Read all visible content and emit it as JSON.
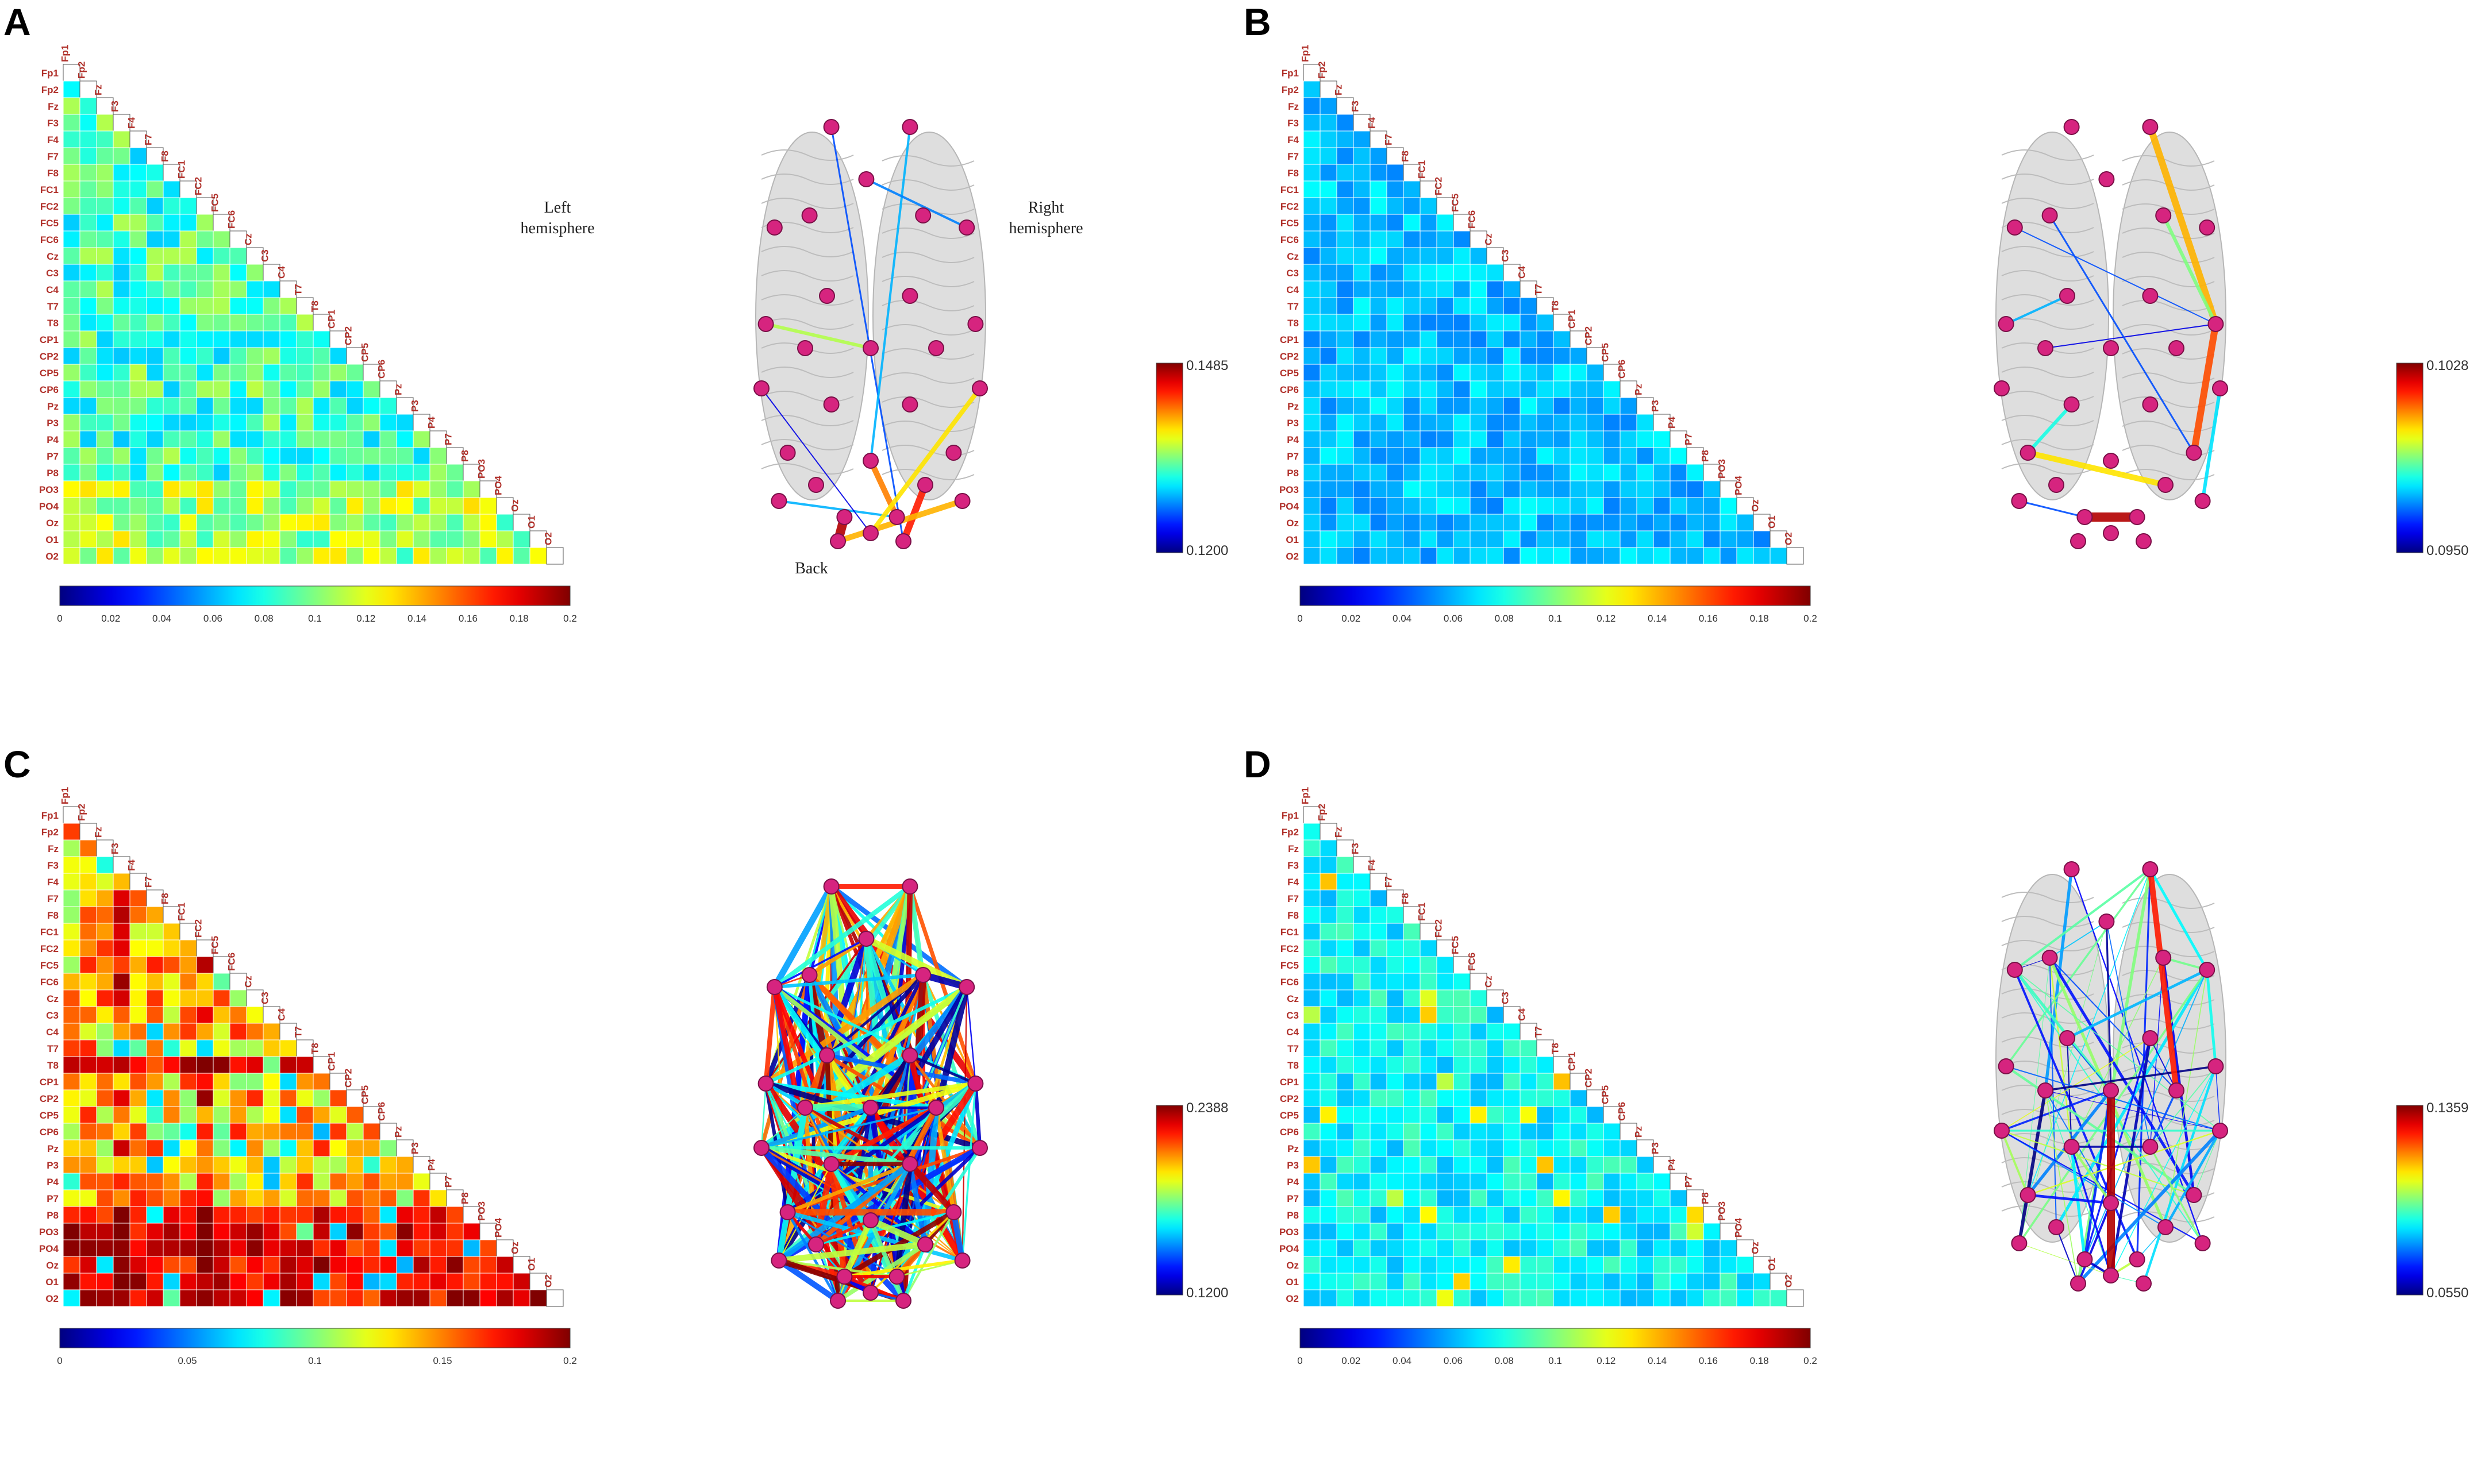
{
  "panels": [
    {
      "id": "A",
      "label": "A",
      "matrix_seed": 3,
      "matrix_mode": "A",
      "scale_labels": [
        "0",
        "0.02",
        "0.04",
        "0.06",
        "0.08",
        "0.1",
        "0.12",
        "0.14",
        "0.16",
        "0.18",
        "0.2"
      ],
      "vcb_top": "0.1485",
      "vcb_bottom": "0.1200",
      "brain_mode": "sparseA",
      "annotations": {
        "left": [
          "Left",
          "hemisphere"
        ],
        "right": [
          "Right",
          "hemisphere"
        ],
        "back": "Back"
      }
    },
    {
      "id": "B",
      "label": "B",
      "matrix_seed": 7,
      "matrix_mode": "B",
      "scale_labels": [
        "0",
        "0.02",
        "0.04",
        "0.06",
        "0.08",
        "0.1",
        "0.12",
        "0.14",
        "0.16",
        "0.18",
        "0.2"
      ],
      "vcb_top": "0.1028",
      "vcb_bottom": "0.0950",
      "brain_mode": "sparseB",
      "annotations": null
    },
    {
      "id": "C",
      "label": "C",
      "matrix_seed": 11,
      "matrix_mode": "C",
      "scale_labels": [
        "0",
        "0.05",
        "0.1",
        "0.15",
        "0.2"
      ],
      "vcb_top": "0.2388",
      "vcb_bottom": "0.1200",
      "brain_mode": "dense",
      "annotations": null
    },
    {
      "id": "D",
      "label": "D",
      "matrix_seed": 19,
      "matrix_mode": "D",
      "scale_labels": [
        "0",
        "0.02",
        "0.04",
        "0.06",
        "0.08",
        "0.1",
        "0.12",
        "0.14",
        "0.16",
        "0.18",
        "0.2"
      ],
      "vcb_top": "0.1359",
      "vcb_bottom": "0.0550",
      "brain_mode": "mediumD",
      "annotations": null
    }
  ],
  "channels": [
    "Fp1",
    "Fp2",
    "Fz",
    "F3",
    "F4",
    "F7",
    "F8",
    "FC1",
    "FC2",
    "FC5",
    "FC6",
    "Cz",
    "C3",
    "C4",
    "T7",
    "T8",
    "CP1",
    "CP2",
    "CP5",
    "CP6",
    "Pz",
    "P3",
    "P4",
    "P7",
    "P8",
    "PO3",
    "PO4",
    "Oz",
    "O1",
    "O2"
  ],
  "colors": {
    "node": "#d6247f",
    "background": "#ffffff",
    "label": "#b0302a"
  }
}
